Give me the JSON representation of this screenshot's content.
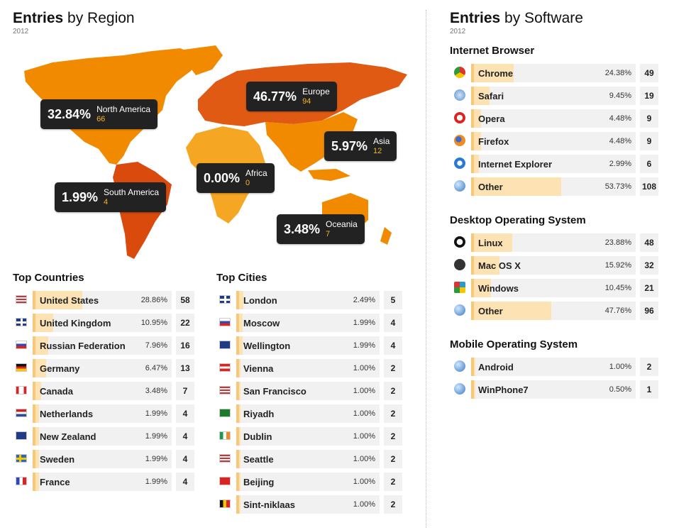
{
  "region": {
    "title_bold": "Entries",
    "title_rest": "by Region",
    "year": "2012"
  },
  "software": {
    "title_bold": "Entries",
    "title_rest": "by Software",
    "year": "2012"
  },
  "map_callouts": [
    {
      "pct": "32.84%",
      "name": "North America",
      "count": "66"
    },
    {
      "pct": "46.77%",
      "name": "Europe",
      "count": "94"
    },
    {
      "pct": "5.97%",
      "name": "Asia",
      "count": "12"
    },
    {
      "pct": "0.00%",
      "name": "Africa",
      "count": "0"
    },
    {
      "pct": "1.99%",
      "name": "South America",
      "count": "4"
    },
    {
      "pct": "3.48%",
      "name": "Oceania",
      "count": "7"
    }
  ],
  "top_countries": {
    "title": "Top Countries",
    "items": [
      {
        "name": "United States",
        "pct": "28.86%",
        "count": "58",
        "flag": "us-flag",
        "share": 0.2886
      },
      {
        "name": "United Kingdom",
        "pct": "10.95%",
        "count": "22",
        "flag": "uk-flag",
        "share": 0.1095
      },
      {
        "name": "Russian Federation",
        "pct": "7.96%",
        "count": "16",
        "flag": "ru-flag",
        "share": 0.0796
      },
      {
        "name": "Germany",
        "pct": "6.47%",
        "count": "13",
        "flag": "de-flag",
        "share": 0.0647
      },
      {
        "name": "Canada",
        "pct": "3.48%",
        "count": "7",
        "flag": "ca-flag",
        "share": 0.0348
      },
      {
        "name": "Netherlands",
        "pct": "1.99%",
        "count": "4",
        "flag": "nl-flag",
        "share": 0.0199
      },
      {
        "name": "New Zealand",
        "pct": "1.99%",
        "count": "4",
        "flag": "nz-flag",
        "share": 0.0199
      },
      {
        "name": "Sweden",
        "pct": "1.99%",
        "count": "4",
        "flag": "se-flag",
        "share": 0.0199
      },
      {
        "name": "France",
        "pct": "1.99%",
        "count": "4",
        "flag": "fr-flag",
        "share": 0.0199
      }
    ]
  },
  "top_cities": {
    "title": "Top Cities",
    "items": [
      {
        "name": "London",
        "pct": "2.49%",
        "count": "5",
        "flag": "uk-flag",
        "share": 0.0249
      },
      {
        "name": "Moscow",
        "pct": "1.99%",
        "count": "4",
        "flag": "ru-flag",
        "share": 0.0199
      },
      {
        "name": "Wellington",
        "pct": "1.99%",
        "count": "4",
        "flag": "nz-flag",
        "share": 0.0199
      },
      {
        "name": "Vienna",
        "pct": "1.00%",
        "count": "2",
        "flag": "at-flag",
        "share": 0.01
      },
      {
        "name": "San Francisco",
        "pct": "1.00%",
        "count": "2",
        "flag": "us-flag",
        "share": 0.01
      },
      {
        "name": "Riyadh",
        "pct": "1.00%",
        "count": "2",
        "flag": "sa-flag",
        "share": 0.01
      },
      {
        "name": "Dublin",
        "pct": "1.00%",
        "count": "2",
        "flag": "ie-flag",
        "share": 0.01
      },
      {
        "name": "Seattle",
        "pct": "1.00%",
        "count": "2",
        "flag": "us-flag",
        "share": 0.01
      },
      {
        "name": "Beijing",
        "pct": "1.00%",
        "count": "2",
        "flag": "cn-flag",
        "share": 0.01
      },
      {
        "name": "Sint-niklaas",
        "pct": "1.00%",
        "count": "2",
        "flag": "be-flag",
        "share": 0.01
      }
    ]
  },
  "browsers": {
    "title": "Internet Browser",
    "items": [
      {
        "name": "Chrome",
        "pct": "24.38%",
        "count": "49",
        "icon": "chrome-icon",
        "share": 0.2438
      },
      {
        "name": "Safari",
        "pct": "9.45%",
        "count": "19",
        "icon": "safari-icon",
        "share": 0.0945
      },
      {
        "name": "Opera",
        "pct": "4.48%",
        "count": "9",
        "icon": "opera-icon",
        "share": 0.0448
      },
      {
        "name": "Firefox",
        "pct": "4.48%",
        "count": "9",
        "icon": "firefox-icon",
        "share": 0.0448
      },
      {
        "name": "Internet Explorer",
        "pct": "2.99%",
        "count": "6",
        "icon": "ie-icon",
        "share": 0.0299
      },
      {
        "name": "Other",
        "pct": "53.73%",
        "count": "108",
        "icon": "globe-icon",
        "share": 0.5373
      }
    ]
  },
  "desktop_os": {
    "title": "Desktop Operating System",
    "items": [
      {
        "name": "Linux",
        "pct": "23.88%",
        "count": "48",
        "icon": "linux-icon",
        "share": 0.2388
      },
      {
        "name": "Mac OS X",
        "pct": "15.92%",
        "count": "32",
        "icon": "apple-icon",
        "share": 0.1592
      },
      {
        "name": "Windows",
        "pct": "10.45%",
        "count": "21",
        "icon": "windows-icon",
        "share": 0.1045
      },
      {
        "name": "Other",
        "pct": "47.76%",
        "count": "96",
        "icon": "globe-icon",
        "share": 0.4776
      }
    ]
  },
  "mobile_os": {
    "title": "Mobile Operating System",
    "items": [
      {
        "name": "Android",
        "pct": "1.00%",
        "count": "2",
        "icon": "globe-icon",
        "share": 0.01
      },
      {
        "name": "WinPhone7",
        "pct": "0.50%",
        "count": "1",
        "icon": "globe-icon",
        "share": 0.005
      }
    ]
  }
}
